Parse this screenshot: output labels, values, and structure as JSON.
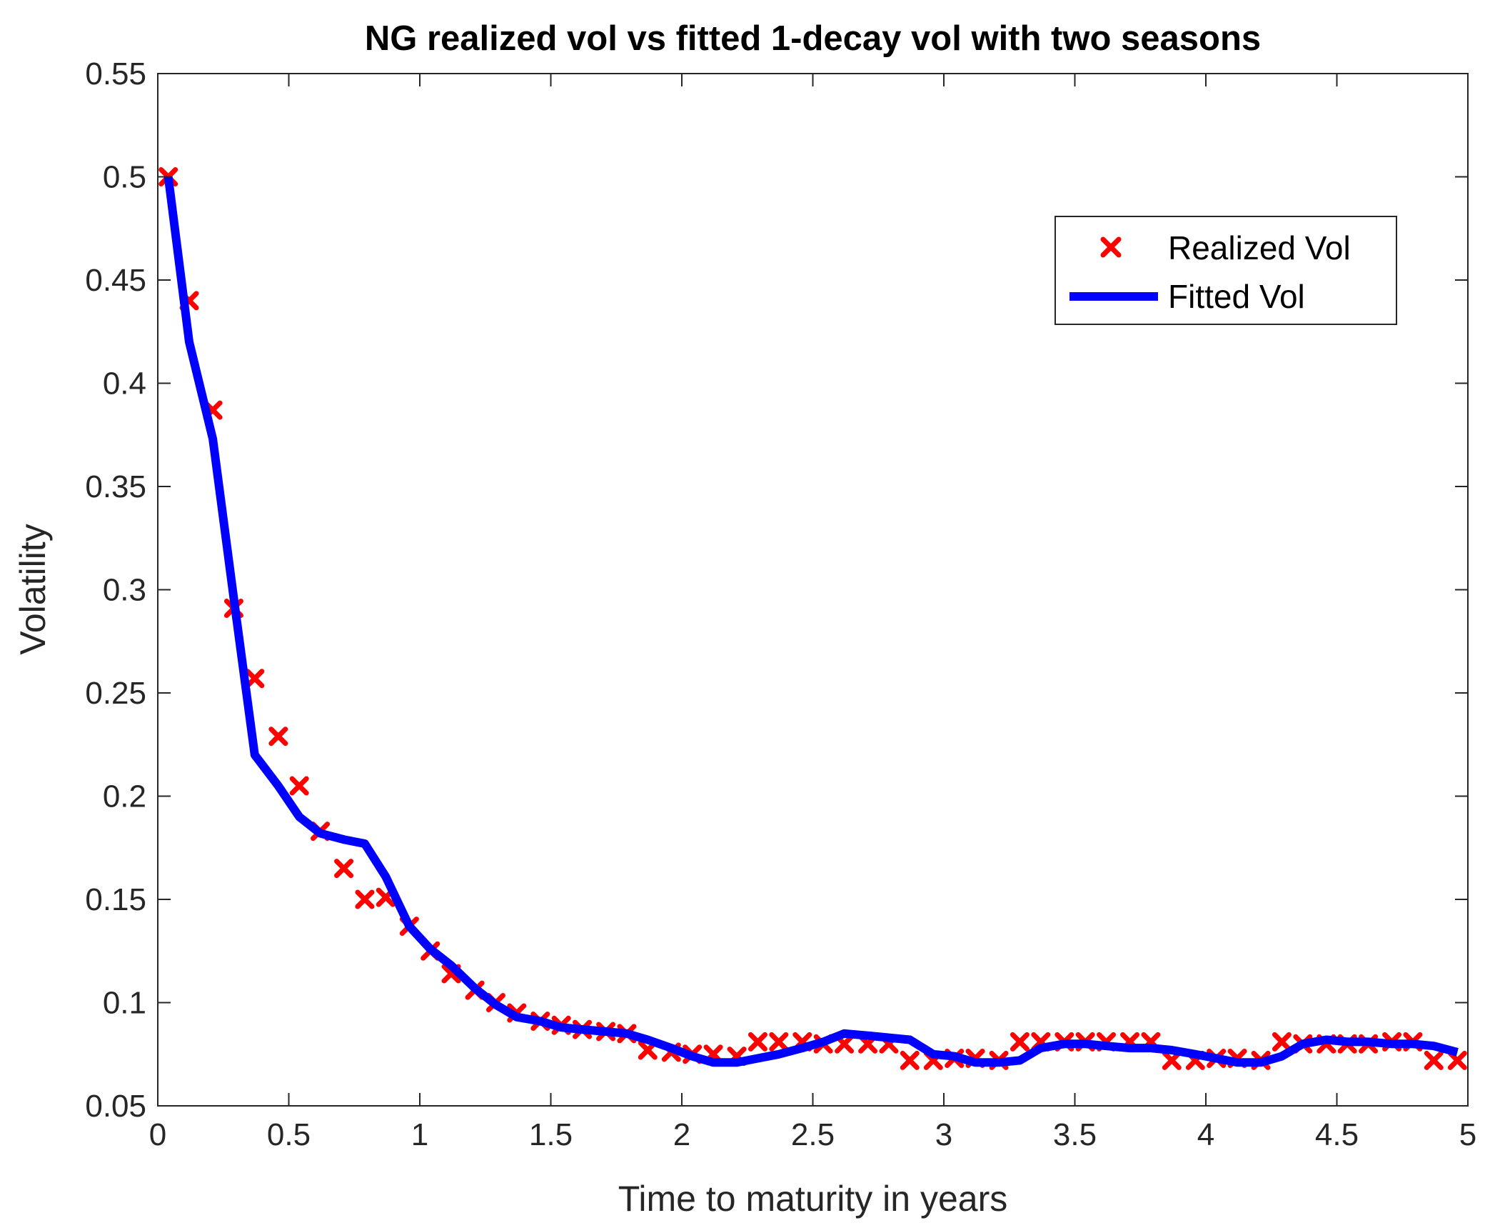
{
  "chart_data": {
    "type": "line",
    "title": "NG realized vol vs fitted 1-decay  vol with two seasons",
    "xlabel": "Time to maturity in years",
    "ylabel": "Volatility",
    "xlim": [
      0,
      5
    ],
    "ylim": [
      0.05,
      0.55
    ],
    "xticks": [
      0,
      0.5,
      1,
      1.5,
      2,
      2.5,
      3,
      3.5,
      4,
      4.5,
      5
    ],
    "yticks": [
      0.05,
      0.1,
      0.15,
      0.2,
      0.25,
      0.3,
      0.35,
      0.4,
      0.45,
      0.5,
      0.55
    ],
    "xtick_labels": [
      "0",
      "0.5",
      "1",
      "1.5",
      "2",
      "2.5",
      "3",
      "3.5",
      "4",
      "4.5",
      "5"
    ],
    "ytick_labels": [
      "0.05",
      "0.1",
      "0.15",
      "0.2",
      "0.25",
      "0.3",
      "0.35",
      "0.4",
      "0.45",
      "0.5",
      "0.55"
    ],
    "grid": false,
    "legend_position": "top-right",
    "series": [
      {
        "name": "Realized Vol",
        "type": "scatter",
        "color": "#ff0000",
        "marker": "x",
        "x": [
          0.04,
          0.12,
          0.21,
          0.29,
          0.37,
          0.46,
          0.54,
          0.62,
          0.71,
          0.79,
          0.87,
          0.96,
          1.04,
          1.12,
          1.21,
          1.29,
          1.37,
          1.46,
          1.54,
          1.62,
          1.71,
          1.79,
          1.87,
          1.96,
          2.04,
          2.12,
          2.21,
          2.29,
          2.37,
          2.46,
          2.54,
          2.62,
          2.71,
          2.79,
          2.87,
          2.96,
          3.04,
          3.12,
          3.21,
          3.29,
          3.37,
          3.46,
          3.54,
          3.62,
          3.71,
          3.79,
          3.87,
          3.96,
          4.04,
          4.12,
          4.21,
          4.29,
          4.37,
          4.46,
          4.54,
          4.62,
          4.71,
          4.79,
          4.87,
          4.96
        ],
        "y": [
          0.5,
          0.44,
          0.387,
          0.291,
          0.257,
          0.229,
          0.205,
          0.183,
          0.165,
          0.15,
          0.151,
          0.137,
          0.125,
          0.114,
          0.106,
          0.1,
          0.095,
          0.091,
          0.089,
          0.087,
          0.086,
          0.085,
          0.077,
          0.076,
          0.075,
          0.075,
          0.074,
          0.081,
          0.081,
          0.081,
          0.08,
          0.08,
          0.08,
          0.08,
          0.072,
          0.072,
          0.073,
          0.073,
          0.072,
          0.081,
          0.081,
          0.081,
          0.081,
          0.081,
          0.081,
          0.081,
          0.072,
          0.072,
          0.073,
          0.073,
          0.072,
          0.081,
          0.08,
          0.08,
          0.08,
          0.08,
          0.081,
          0.081,
          0.072,
          0.072
        ]
      },
      {
        "name": "Fitted Vol",
        "type": "line",
        "color": "#0000ff",
        "x": [
          0.04,
          0.12,
          0.21,
          0.29,
          0.37,
          0.46,
          0.54,
          0.62,
          0.71,
          0.79,
          0.87,
          0.96,
          1.04,
          1.12,
          1.21,
          1.29,
          1.37,
          1.46,
          1.54,
          1.62,
          1.71,
          1.79,
          1.87,
          1.96,
          2.04,
          2.12,
          2.21,
          2.29,
          2.37,
          2.46,
          2.54,
          2.62,
          2.71,
          2.79,
          2.87,
          2.96,
          3.04,
          3.12,
          3.21,
          3.29,
          3.37,
          3.46,
          3.54,
          3.62,
          3.71,
          3.79,
          3.87,
          3.96,
          4.04,
          4.12,
          4.21,
          4.29,
          4.37,
          4.46,
          4.54,
          4.62,
          4.71,
          4.79,
          4.87,
          4.96
        ],
        "y": [
          0.5,
          0.42,
          0.373,
          0.296,
          0.22,
          0.205,
          0.19,
          0.182,
          0.179,
          0.177,
          0.161,
          0.137,
          0.126,
          0.118,
          0.107,
          0.099,
          0.093,
          0.091,
          0.088,
          0.087,
          0.086,
          0.085,
          0.082,
          0.078,
          0.074,
          0.071,
          0.071,
          0.073,
          0.075,
          0.078,
          0.081,
          0.085,
          0.084,
          0.083,
          0.082,
          0.075,
          0.074,
          0.071,
          0.071,
          0.072,
          0.078,
          0.08,
          0.08,
          0.079,
          0.078,
          0.078,
          0.077,
          0.075,
          0.073,
          0.071,
          0.071,
          0.074,
          0.08,
          0.082,
          0.081,
          0.081,
          0.08,
          0.08,
          0.079,
          0.076
        ]
      }
    ]
  }
}
